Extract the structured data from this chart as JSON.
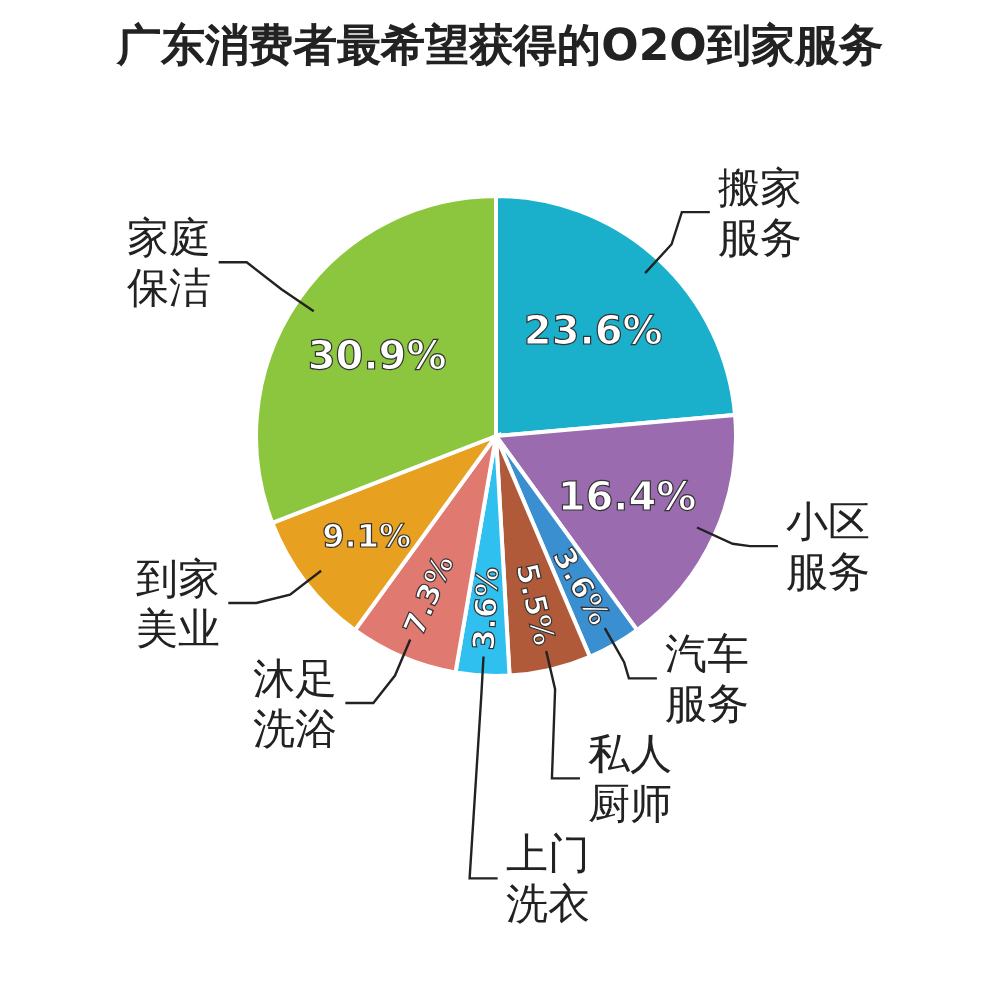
{
  "chart_data": {
    "type": "pie",
    "title": "广东消费者最希望获得的O2O到家服务",
    "categories": [
      "搬家服务",
      "小区服务",
      "汽车服务",
      "私人厨师",
      "上门洗衣",
      "沐足洗浴",
      "到家美业",
      "家庭保洁"
    ],
    "values": [
      23.6,
      16.4,
      3.6,
      5.5,
      3.6,
      7.3,
      9.1,
      30.9
    ],
    "value_labels": [
      "23.6%",
      "16.4%",
      "3.6%",
      "5.5%",
      "3.6%",
      "7.3%",
      "9.1%",
      "30.9%"
    ],
    "colors": [
      "#1ab0cc",
      "#9b6bb0",
      "#3a8fd0",
      "#b05a3a",
      "#30c0f0",
      "#e07a70",
      "#e8a020",
      "#8cc63e"
    ],
    "legend": false
  }
}
